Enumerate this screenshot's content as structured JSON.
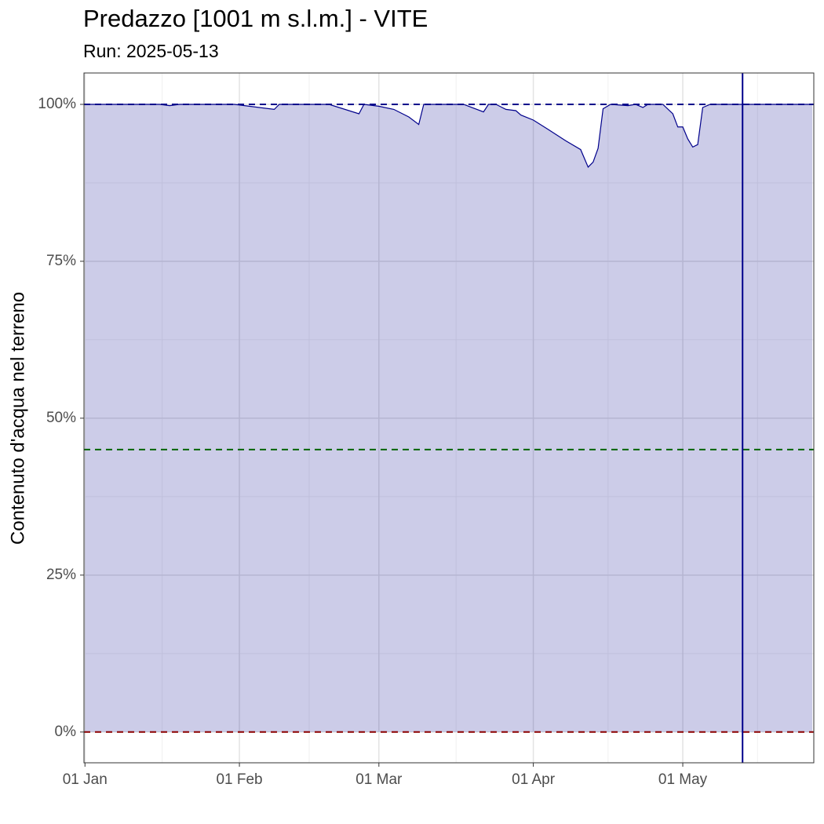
{
  "chart_data": {
    "type": "area",
    "title": "Predazzo [1001 m s.l.m.] - VITE",
    "subtitle": "Run: 2025-05-13",
    "ylabel": "Contenuto d'acqua nel terreno",
    "x": [
      0,
      15,
      17,
      19,
      30,
      38,
      39,
      49,
      55,
      56,
      59,
      62,
      65,
      67,
      68,
      76,
      80,
      81,
      82.5,
      84.5,
      86.5,
      87.5,
      90,
      93,
      96.5,
      99.5,
      101,
      102,
      103,
      104,
      105.5,
      109,
      110.5,
      112,
      113,
      116,
      118,
      119,
      120,
      121,
      122,
      123,
      124,
      125.5,
      146
    ],
    "series": [
      {
        "color": "#00008b",
        "fill": "rgba(0,0,139,0.2)",
        "values": [
          100,
          100,
          99.8,
          100,
          100,
          99.2,
          100,
          100,
          98.5,
          100,
          99.7,
          99.2,
          98,
          96.8,
          100,
          100,
          98.8,
          100,
          100,
          99.2,
          99,
          98.3,
          97.5,
          96,
          94.2,
          92.8,
          90,
          90.8,
          93,
          99.3,
          100,
          99.8,
          100,
          99.5,
          100,
          100,
          98.5,
          96.4,
          96.4,
          94.5,
          93.2,
          93.6,
          99.5,
          100,
          100
        ]
      }
    ],
    "xlim": [
      -0.2,
      146.3
    ],
    "xticks": [
      {
        "value": 0,
        "label": "01 Jan"
      },
      {
        "value": 31,
        "label": "01 Feb"
      },
      {
        "value": 59,
        "label": "01 Mar"
      },
      {
        "value": 90,
        "label": "01 Apr"
      },
      {
        "value": 120,
        "label": "01 May"
      }
    ],
    "ylim": [
      -4.9,
      105
    ],
    "yticks": [
      {
        "value": 0,
        "label": "0%"
      },
      {
        "value": 25,
        "label": "25%"
      },
      {
        "value": 50,
        "label": "50%"
      },
      {
        "value": 75,
        "label": "75%"
      },
      {
        "value": 100,
        "label": "100%"
      }
    ],
    "hlines": [
      {
        "value": 100,
        "color": "#00008b"
      },
      {
        "value": 45,
        "color": "#006400"
      },
      {
        "value": 0,
        "color": "#8b0000"
      }
    ],
    "vline": {
      "value": 132,
      "color": "#00008b"
    },
    "grid": true
  }
}
